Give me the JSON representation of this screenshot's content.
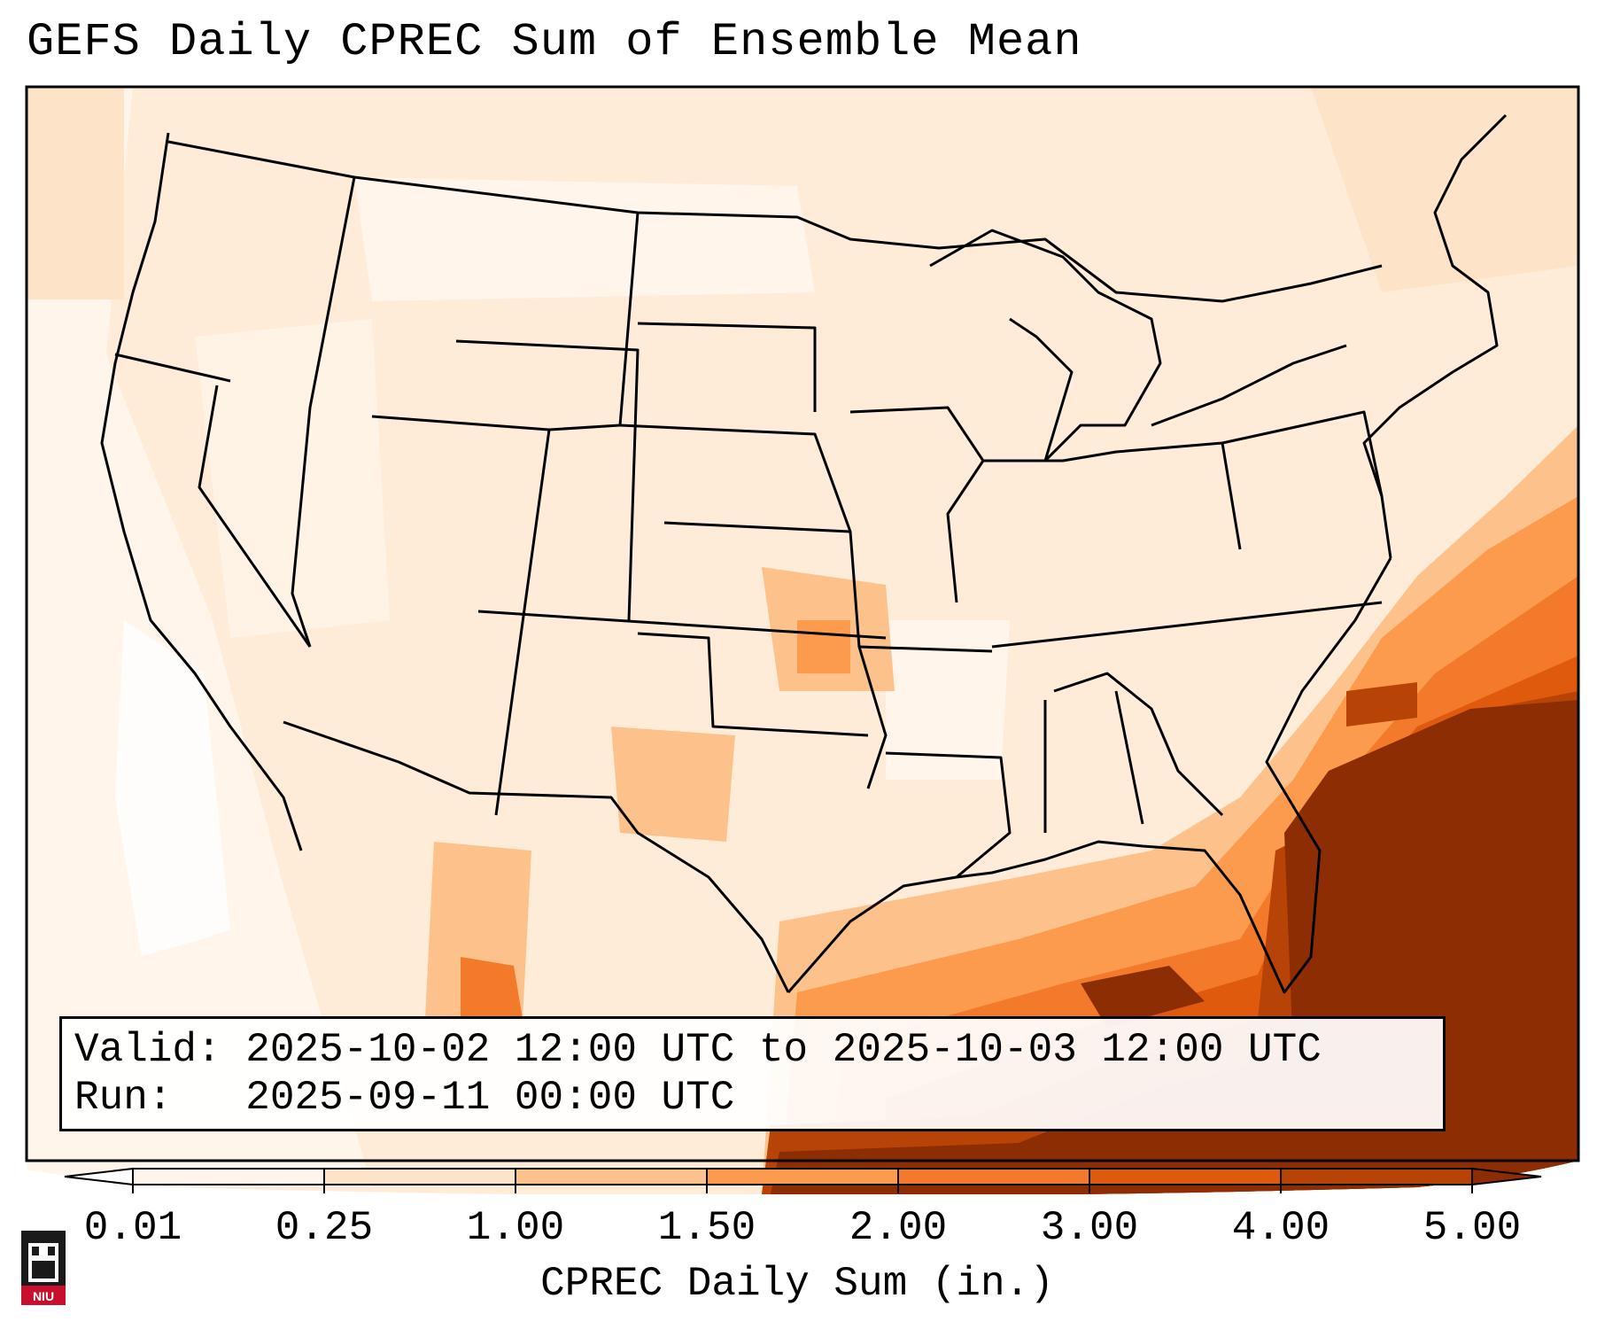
{
  "title": "GEFS Daily CPREC Sum of Ensemble Mean",
  "info": {
    "valid_label": "Valid:",
    "valid_value": "2025-10-02 12:00 UTC to 2025-10-03 12:00 UTC",
    "run_label": "Run:",
    "run_value": "2025-09-11 00:00 UTC"
  },
  "colorbar": {
    "label": "CPREC Daily Sum (in.)",
    "ticks": [
      "0.01",
      "0.25",
      "1.00",
      "1.50",
      "2.00",
      "3.00",
      "4.00",
      "5.00"
    ],
    "levels": [
      0.01,
      0.25,
      1.0,
      1.5,
      2.0,
      3.0,
      4.0,
      5.0
    ],
    "colors": [
      "#fff5eb",
      "#fde3c8",
      "#fdc28c",
      "#fc9a4e",
      "#f47a2b",
      "#e05a0e",
      "#b84306",
      "#8c2d04"
    ],
    "extend": "both"
  },
  "logo": {
    "text": "NIU",
    "color": "#c8102e"
  }
}
